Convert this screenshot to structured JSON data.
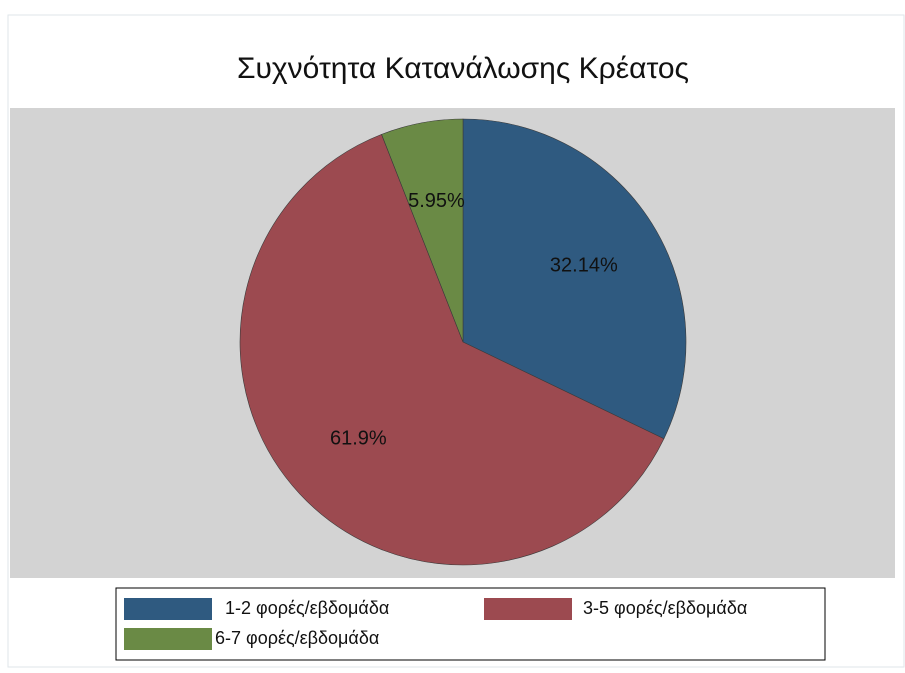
{
  "chart_data": {
    "type": "pie",
    "title": "Συχνότητα Κατανάλωσης Κρέατος",
    "categories": [
      "1-2 φορές/εβδομάδα",
      "3-5 φορές/εβδομάδα",
      "6-7 φορές/εβδομάδα"
    ],
    "values": [
      32.14,
      61.9,
      5.95
    ],
    "value_labels": [
      "32.14%",
      "61.9%",
      "5.95%"
    ],
    "colors": [
      "#2f5a80",
      "#9c4a50",
      "#6a8a45"
    ]
  }
}
